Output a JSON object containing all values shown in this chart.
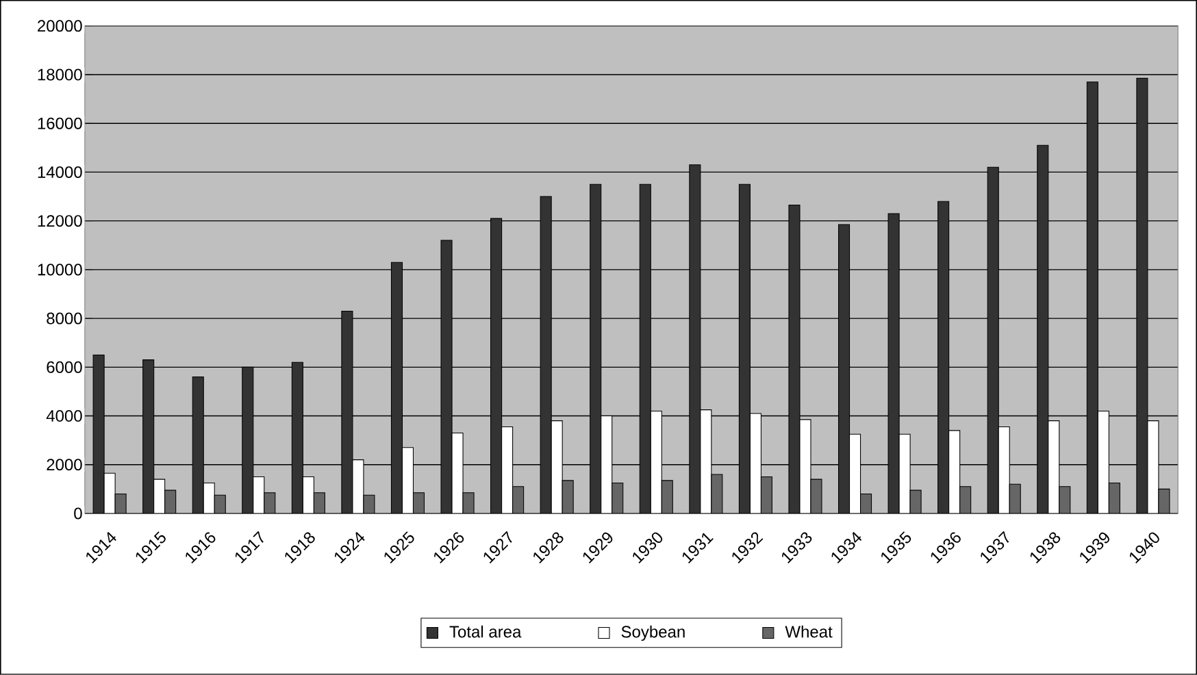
{
  "chart_data": {
    "type": "bar",
    "categories": [
      "1914",
      "1915",
      "1916",
      "1917",
      "1918",
      "1924",
      "1925",
      "1926",
      "1927",
      "1928",
      "1929",
      "1930",
      "1931",
      "1932",
      "1933",
      "1934",
      "1935",
      "1936",
      "1937",
      "1938",
      "1939",
      "1940"
    ],
    "series": [
      {
        "name": "Total area",
        "color": "#333333",
        "values": [
          6500,
          6300,
          5600,
          6000,
          6200,
          8300,
          10300,
          11200,
          12100,
          13000,
          13500,
          13500,
          14300,
          13500,
          12650,
          11850,
          12300,
          12800,
          14200,
          15100,
          17700,
          17850
        ]
      },
      {
        "name": "Soybean",
        "color": "#ffffff",
        "values": [
          1650,
          1400,
          1250,
          1500,
          1500,
          2200,
          2700,
          3300,
          3550,
          3800,
          4000,
          4200,
          4250,
          4100,
          3850,
          3250,
          3250,
          3400,
          3550,
          3800,
          4200,
          3800
        ]
      },
      {
        "name": "Wheat",
        "color": "#666666",
        "values": [
          800,
          950,
          750,
          850,
          850,
          750,
          850,
          850,
          1100,
          1350,
          1250,
          1350,
          1600,
          1500,
          1400,
          800,
          950,
          1100,
          1200,
          1100,
          1250,
          1000
        ]
      }
    ],
    "ylim": [
      0,
      20000
    ],
    "yticks": [
      0,
      2000,
      4000,
      6000,
      8000,
      10000,
      12000,
      14000,
      16000,
      18000,
      20000
    ],
    "grid": "y",
    "legend": "bottom"
  }
}
